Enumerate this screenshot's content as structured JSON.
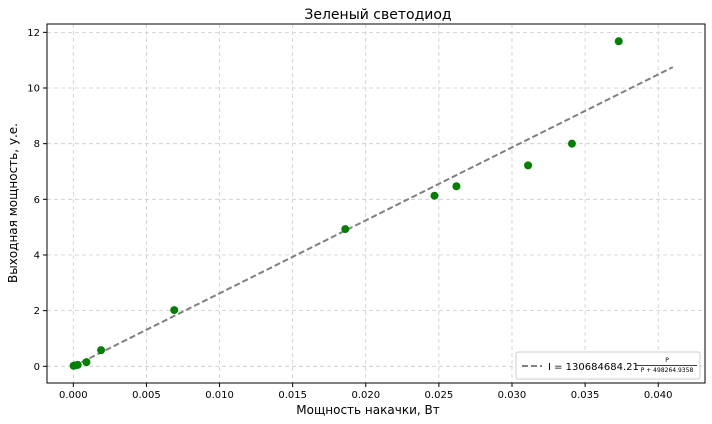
{
  "chart_data": {
    "type": "scatter",
    "title": "Зеленый светодиод",
    "xlabel": "Мощность накачки, Вт",
    "ylabel": "Выходная мощность, у.е.",
    "xlim": [
      -0.0018,
      0.0432
    ],
    "ylim": [
      -0.6,
      12.3
    ],
    "xticks": [
      "0.000",
      "0.005",
      "0.010",
      "0.015",
      "0.020",
      "0.025",
      "0.030",
      "0.035",
      "0.040"
    ],
    "xtick_values": [
      0,
      0.005,
      0.01,
      0.015,
      0.02,
      0.025,
      0.03,
      0.035,
      0.04
    ],
    "yticks": [
      "0",
      "2",
      "4",
      "6",
      "8",
      "10",
      "12"
    ],
    "ytick_values": [
      0,
      2,
      4,
      6,
      8,
      10,
      12
    ],
    "grid": true,
    "legend_position": "bottom-right",
    "series": [
      {
        "kind": "scatter",
        "color": "#008000",
        "x": [
          2e-05,
          0.0001,
          0.0003,
          0.0009,
          0.0019,
          0.0069,
          0.0186,
          0.0247,
          0.0262,
          0.0311,
          0.0341,
          0.0373
        ],
        "y": [
          0.02,
          0.03,
          0.05,
          0.15,
          0.58,
          2.02,
          4.93,
          6.13,
          6.47,
          7.22,
          8.0,
          11.68
        ]
      },
      {
        "kind": "line",
        "style": "dashed",
        "color": "#808080",
        "x": [
          0.0,
          0.041
        ],
        "y": [
          0.0,
          10.75
        ],
        "legend_lhs": "I = 130684684.21",
        "legend_num": "P",
        "legend_den": "P + 498264.9358"
      }
    ]
  }
}
